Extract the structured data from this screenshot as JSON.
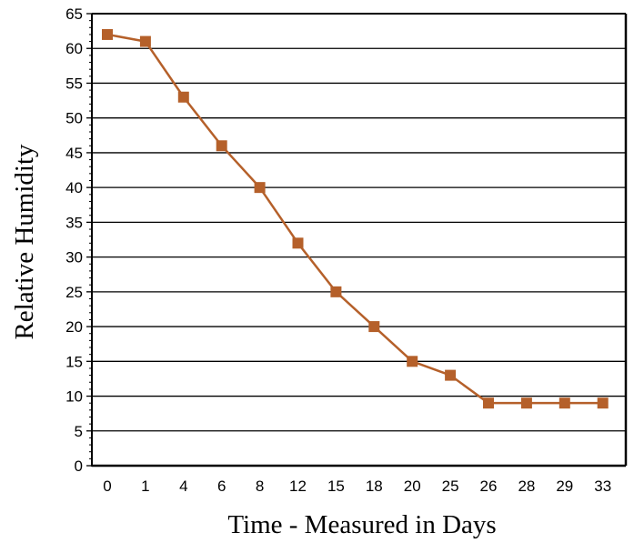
{
  "chart_data": {
    "type": "line",
    "title": "",
    "xlabel": "Time - Measured in Days",
    "ylabel": "Relative Humidity",
    "categories": [
      "0",
      "1",
      "4",
      "6",
      "8",
      "12",
      "15",
      "18",
      "20",
      "25",
      "26",
      "28",
      "29",
      "33"
    ],
    "series": [
      {
        "values": [
          62,
          61,
          53,
          46,
          40,
          32,
          25,
          20,
          15,
          13,
          9,
          9,
          9,
          9
        ],
        "color": "#B5602A",
        "marker": "square"
      }
    ],
    "yticks": [
      "0",
      "5",
      "10",
      "15",
      "20",
      "25",
      "30",
      "35",
      "40",
      "45",
      "50",
      "55",
      "60",
      "65"
    ],
    "ylim": [
      0,
      65
    ],
    "grid": "horizontal",
    "legend": "none"
  }
}
